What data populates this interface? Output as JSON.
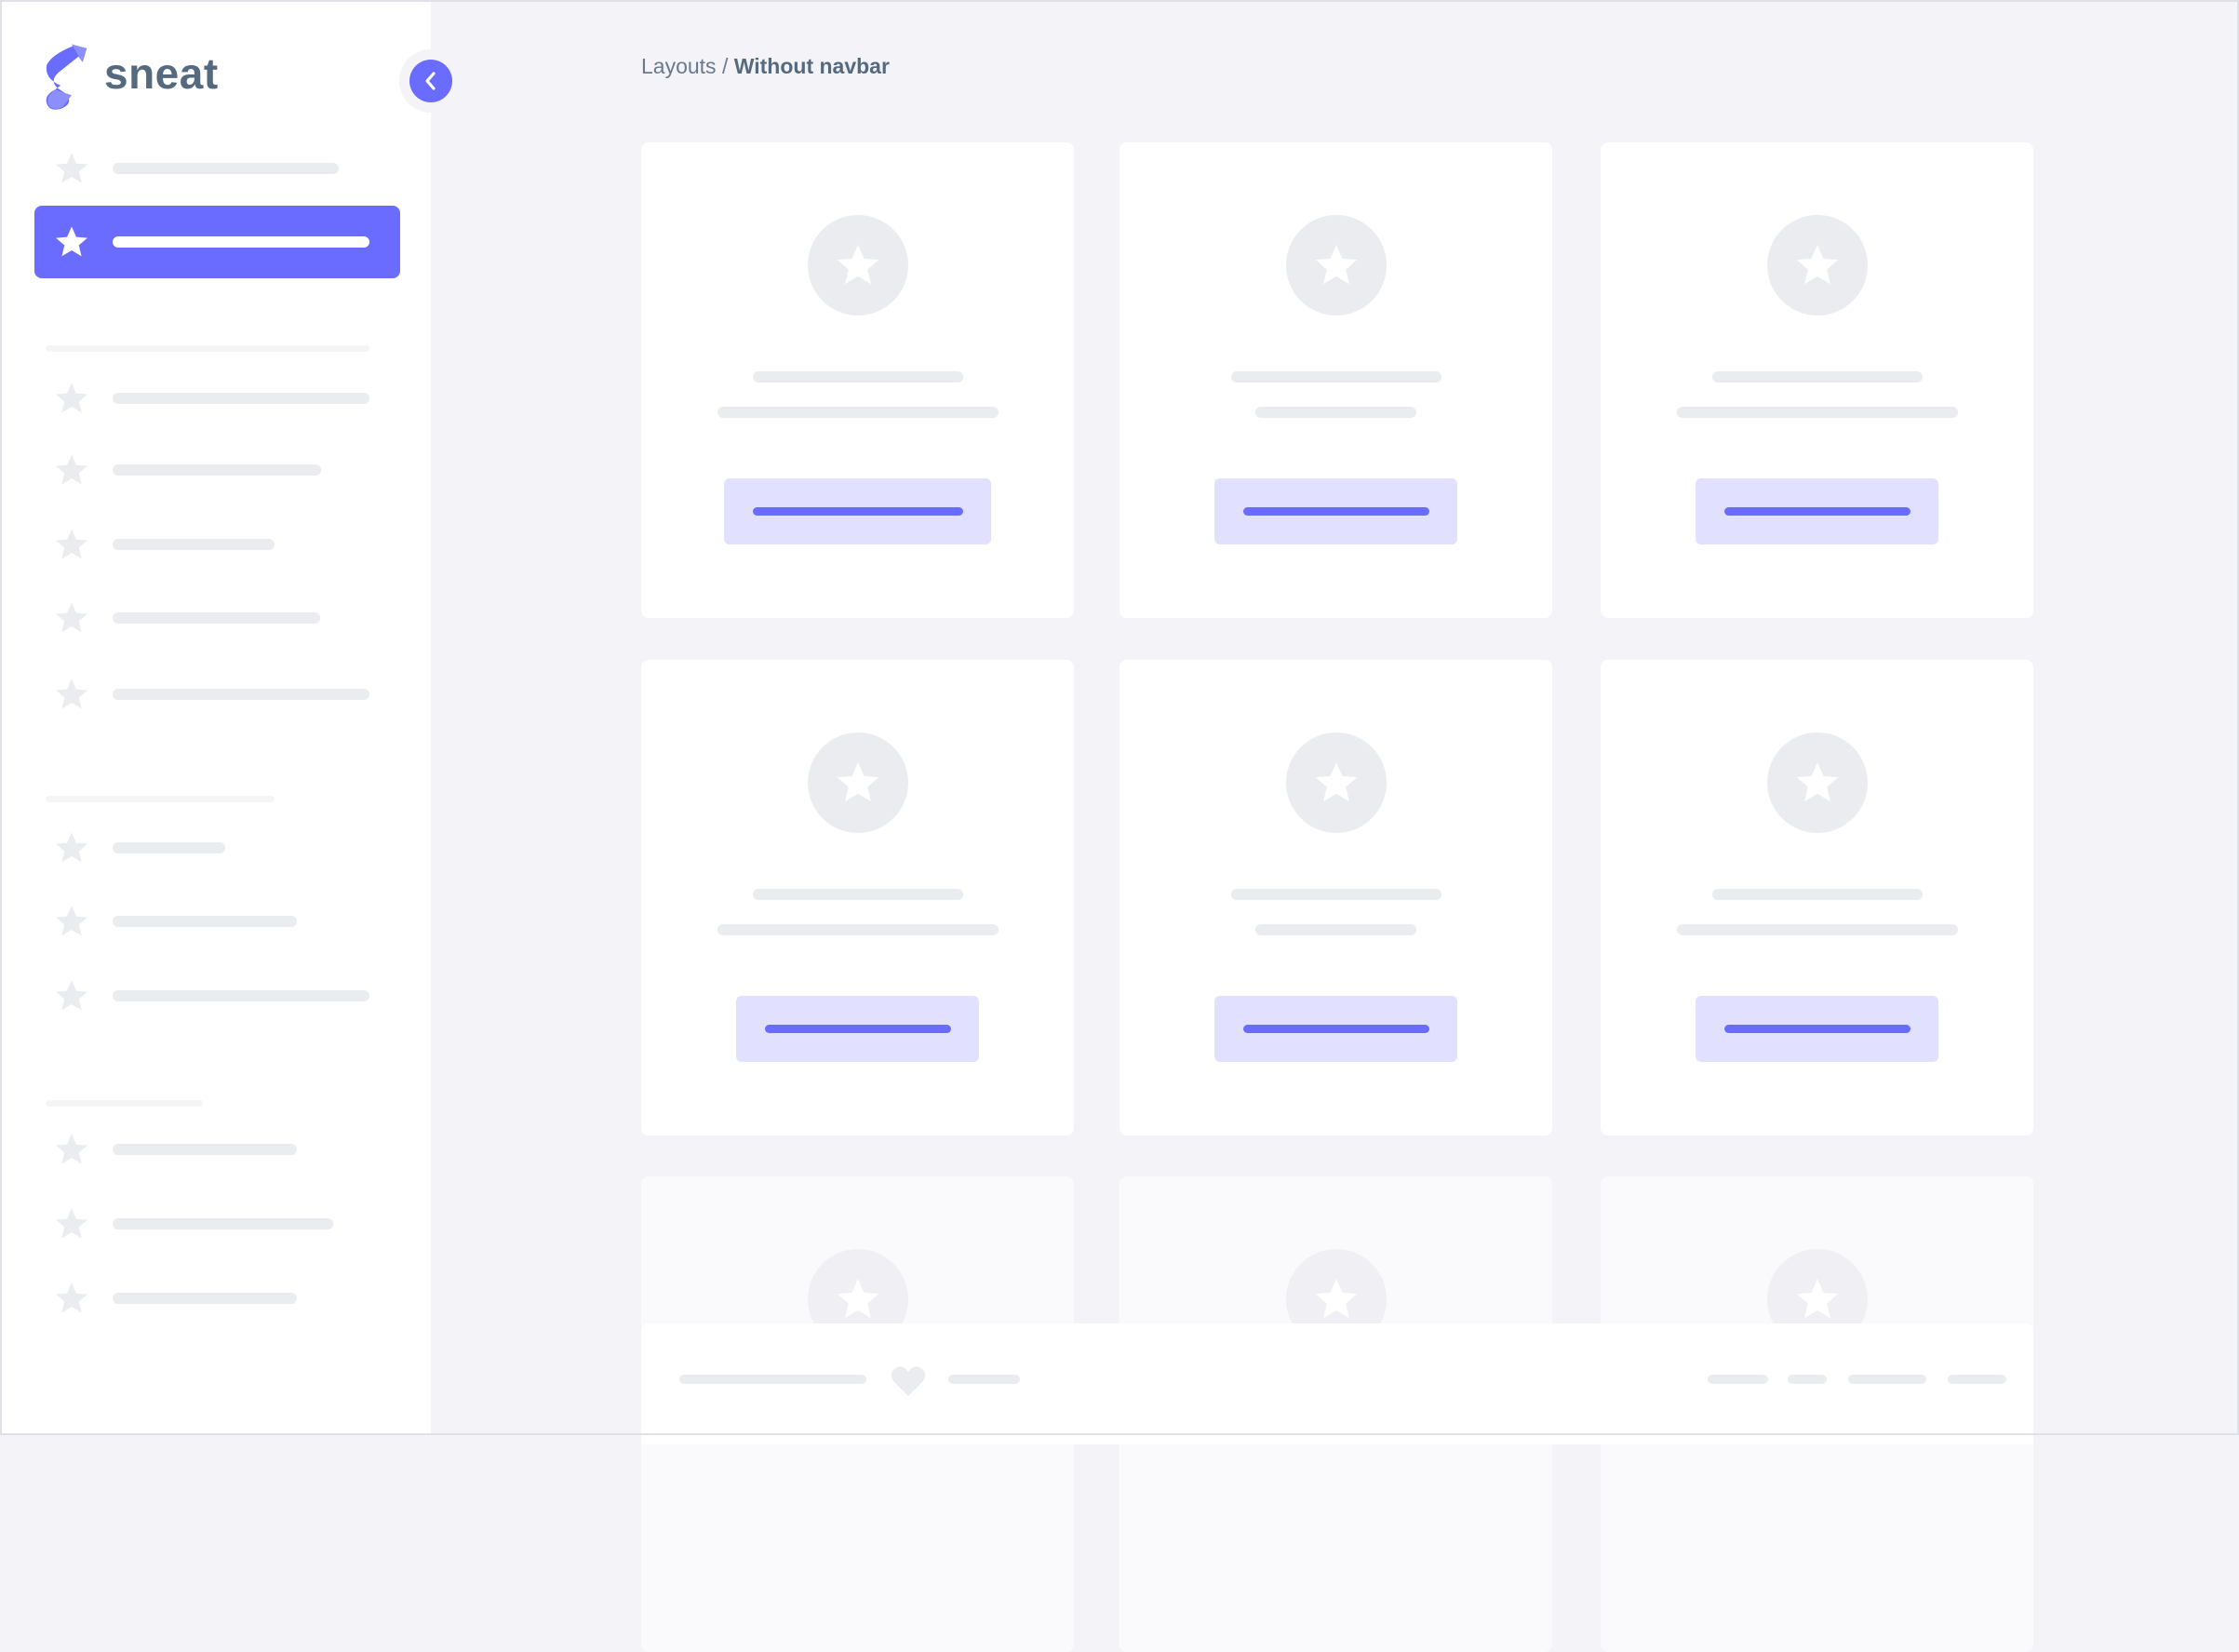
{
  "app": {
    "logo_text": "sneat"
  },
  "breadcrumb": {
    "parent": "Layouts",
    "separator": " / ",
    "current": "Without navbar"
  },
  "colors": {
    "primary": "#696cff",
    "primary_light": "#e1e1ff",
    "background": "#f4f4f8",
    "placeholder": "#ebecf0",
    "text": "#566a7f"
  },
  "icons": {
    "logo": "sneat-logo-icon",
    "toggle": "chevron-left-icon",
    "menu_item": "star-icon",
    "card_avatar": "star-icon",
    "footer": "heart-icon"
  },
  "sidebar": {
    "active_index": 1
  },
  "footer": {}
}
